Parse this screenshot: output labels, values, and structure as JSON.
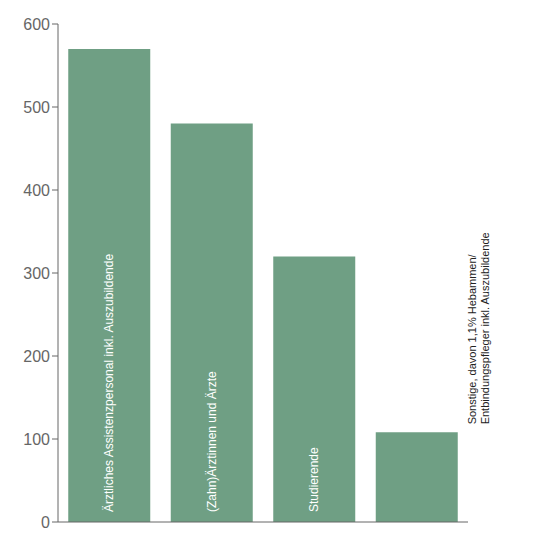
{
  "chart_data": {
    "type": "bar",
    "categories": [
      "Ärztliches Assistenzpersonal inkl. Auszubildende",
      "(Zahn)Ärztinnen und Ärzte",
      "Studierende",
      "Sonstige, davon 1,1% Hebammen/\nEntbindungspfleger inkl. Auszubildende"
    ],
    "values": [
      570,
      480,
      320,
      108
    ],
    "color": "#6f9f84",
    "ylim": [
      0,
      600
    ],
    "yticks": [
      0,
      100,
      200,
      300,
      400,
      500,
      600
    ],
    "tick_labels": "y"
  }
}
